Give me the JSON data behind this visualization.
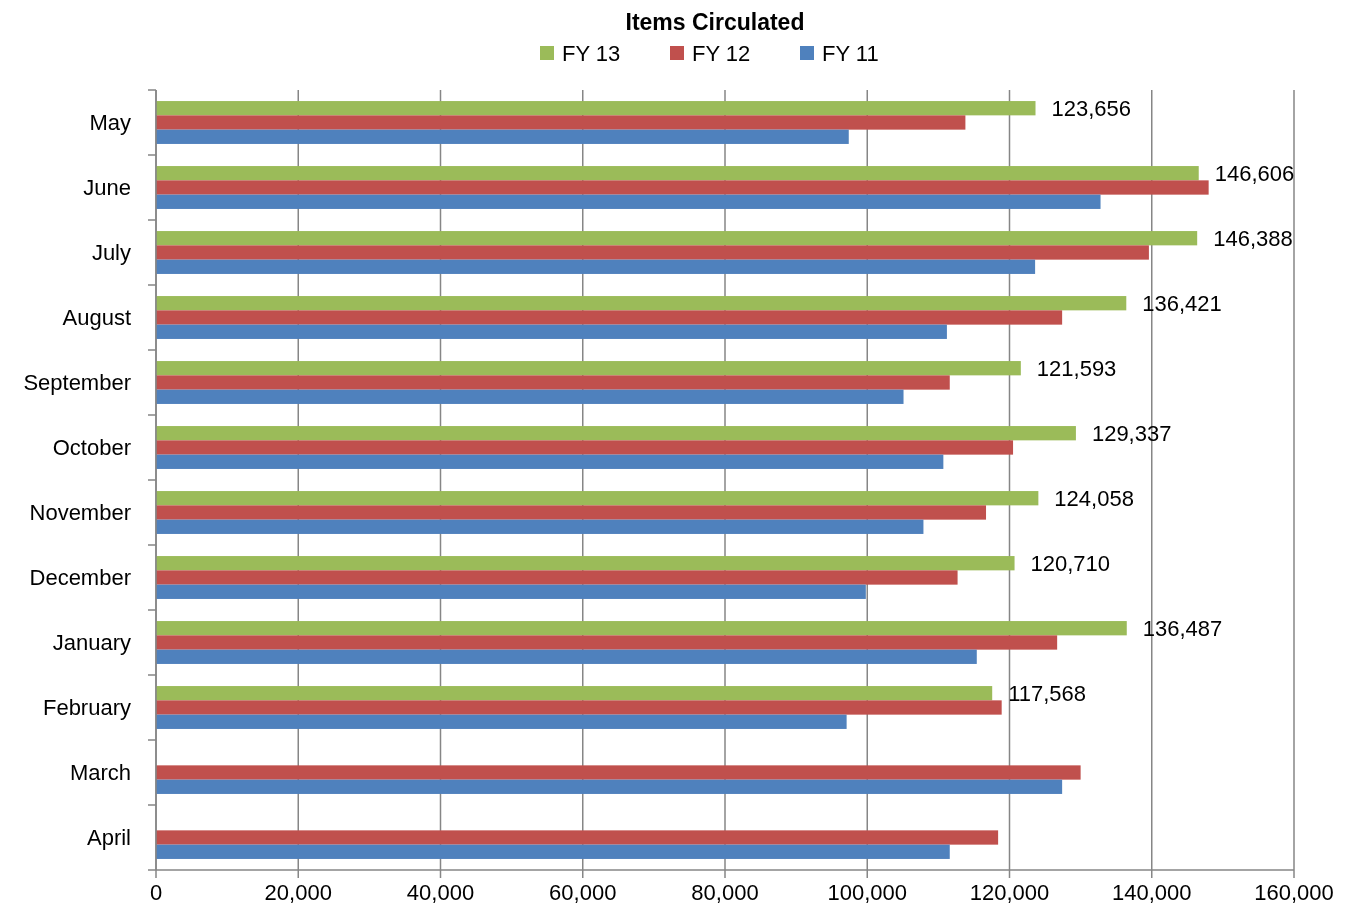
{
  "chart_data": {
    "type": "bar",
    "orientation": "horizontal",
    "title": "Items Circulated",
    "categories": [
      "May",
      "June",
      "July",
      "August",
      "September",
      "October",
      "November",
      "December",
      "January",
      "February",
      "March",
      "April"
    ],
    "series": [
      {
        "name": "FY 13",
        "color": "#9bbb59",
        "values": [
          123656,
          146606,
          146388,
          136421,
          121593,
          129337,
          124058,
          120710,
          136487,
          117568,
          null,
          null
        ],
        "value_labels": [
          "123,656",
          "146,606",
          "146,388",
          "136,421",
          "121,593",
          "129,337",
          "124,058",
          "120,710",
          "136,487",
          "117,568",
          null,
          null
        ]
      },
      {
        "name": "FY 12",
        "color": "#c0504d",
        "values": [
          113800,
          148000,
          139600,
          127400,
          111600,
          120500,
          116700,
          112700,
          126700,
          118900,
          130000,
          118400
        ]
      },
      {
        "name": "FY 11",
        "color": "#4f81bd",
        "values": [
          97400,
          132800,
          123600,
          111200,
          105100,
          110700,
          107900,
          99800,
          115400,
          97100,
          127400,
          111600
        ]
      }
    ],
    "xlim": [
      0,
      160000
    ],
    "xticks": [
      {
        "value": 0,
        "label": "0"
      },
      {
        "value": 20000,
        "label": "20,000"
      },
      {
        "value": 40000,
        "label": "40,000"
      },
      {
        "value": 60000,
        "label": "60,000"
      },
      {
        "value": 80000,
        "label": "80,000"
      },
      {
        "value": 100000,
        "label": "100,000"
      },
      {
        "value": 120000,
        "label": "120,000"
      },
      {
        "value": 140000,
        "label": "140,000"
      },
      {
        "value": 160000,
        "label": "160,000"
      }
    ],
    "grid": "x",
    "legend": "top"
  }
}
